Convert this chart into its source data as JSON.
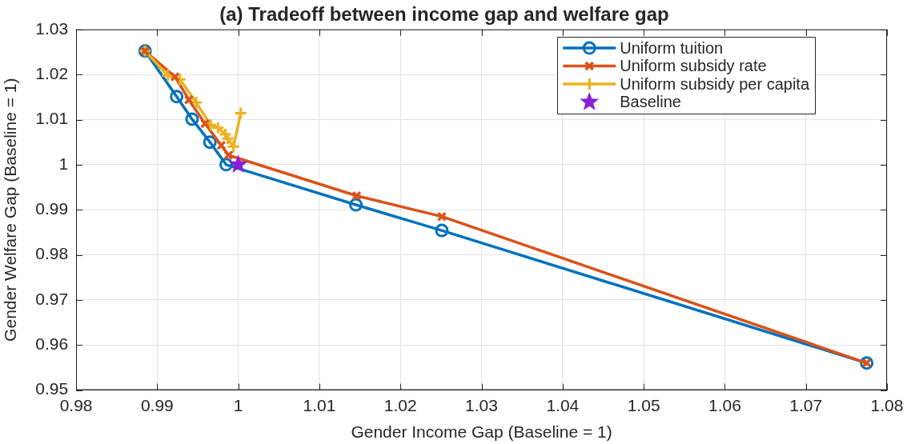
{
  "chart_data": {
    "type": "line",
    "title": "(a) Tradeoff between income gap and welfare gap",
    "xlabel": "Gender Income Gap (Baseline = 1)",
    "ylabel": "Gender Welfare Gap (Baseline = 1)",
    "xlim": [
      0.98,
      1.08
    ],
    "xticks": [
      0.98,
      0.99,
      1,
      1.01,
      1.02,
      1.03,
      1.04,
      1.05,
      1.06,
      1.07,
      1.08
    ],
    "ylim": [
      0.95,
      1.03
    ],
    "yticks": [
      0.95,
      0.96,
      0.97,
      0.98,
      0.99,
      1,
      1.01,
      1.02,
      1.03
    ],
    "grid": true,
    "legend": "top right",
    "line_style": "solid",
    "series": [
      {
        "name": "Uniform tuition",
        "color": "#0072bd",
        "marker": "circle",
        "x": [
          0.9885,
          0.9924,
          0.9943,
          0.9965,
          0.9985,
          1.0145,
          1.0251,
          1.0775
        ],
        "values": [
          1.0252,
          1.0151,
          1.0101,
          1.005,
          1.0,
          0.9911,
          0.9854,
          0.956
        ]
      },
      {
        "name": "Uniform subsidy rate",
        "color": "#d95319",
        "marker": "x",
        "x": [
          0.9885,
          0.9922,
          0.9939,
          0.9959,
          0.9979,
          0.9988,
          1.0146,
          1.0251,
          1.0775
        ],
        "values": [
          1.0252,
          1.0195,
          1.0144,
          1.0091,
          1.0043,
          1.0021,
          0.9931,
          0.9885,
          0.956
        ]
      },
      {
        "name": "Uniform subsidy per capita",
        "color": "#edb120",
        "marker": "cross",
        "x": [
          0.9885,
          0.9913,
          0.9928,
          0.9948,
          0.9966,
          0.9975,
          0.9984,
          0.9987,
          0.9994,
          1.0003
        ],
        "values": [
          1.0252,
          1.0198,
          1.0189,
          1.0138,
          1.0088,
          1.0082,
          1.0067,
          1.0058,
          1.004,
          1.0114
        ]
      },
      {
        "name": "Baseline",
        "type": "scatter",
        "color": "#8a1fd6",
        "marker": "star",
        "x": [
          1
        ],
        "values": [
          1
        ]
      }
    ]
  }
}
